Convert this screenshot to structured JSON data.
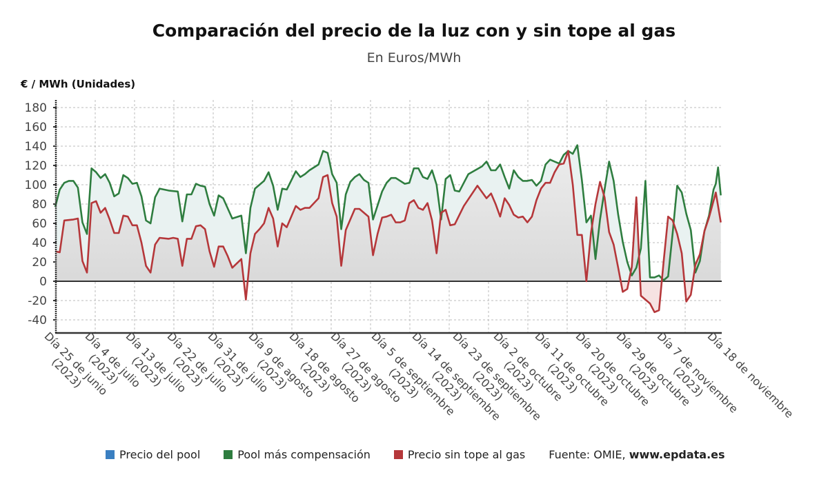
{
  "title": "Comparación del precio de la luz con y sin tope al gas",
  "subtitle": "En Euros/MWh",
  "source_label": "Fuente: OMIE,",
  "source_site": "www.epdata.es",
  "chart_data": {
    "type": "area",
    "title": "Comparación del precio de la luz con y sin tope al gas",
    "subtitle": "En Euros/MWh",
    "ylabel": "€ / MWh (Unidades)",
    "xlabel": "",
    "ylim": [
      -53,
      185
    ],
    "xlim": [
      0,
      146
    ],
    "grid": true,
    "legend_position": "bottom",
    "yticks": [
      180,
      160,
      140,
      120,
      100,
      80,
      60,
      40,
      20,
      0,
      -20,
      -40
    ],
    "xticks": [
      {
        "day": 0,
        "l1": "Día 25 de junio",
        "l2": "(2023)"
      },
      {
        "day": 9,
        "l1": "Día 4 de julio",
        "l2": "(2023)"
      },
      {
        "day": 18,
        "l1": "Día 13 de julio",
        "l2": "(2023)"
      },
      {
        "day": 27,
        "l1": "Día 22 de julio",
        "l2": "(2023)"
      },
      {
        "day": 36,
        "l1": "Día 31 de julio",
        "l2": "(2023)"
      },
      {
        "day": 45,
        "l1": "Día 9 de agosto",
        "l2": "(2023)"
      },
      {
        "day": 54,
        "l1": "Día 18 de agosto",
        "l2": "(2023)"
      },
      {
        "day": 63,
        "l1": "Día 27 de agosto",
        "l2": "(2023)"
      },
      {
        "day": 72,
        "l1": "Día 5 de septiembre",
        "l2": "(2023)"
      },
      {
        "day": 81,
        "l1": "Día 14 de septiembre",
        "l2": "(2023)"
      },
      {
        "day": 90,
        "l1": "Día 23 de septiembre",
        "l2": "(2023)"
      },
      {
        "day": 99,
        "l1": "Día 2 de octubre",
        "l2": "(2023)"
      },
      {
        "day": 108,
        "l1": "Día 11 de octubre",
        "l2": "(2023)"
      },
      {
        "day": 117,
        "l1": "Día 20 de octubre",
        "l2": "(2023)"
      },
      {
        "day": 126,
        "l1": "Día 29 de octubre",
        "l2": "(2023)"
      },
      {
        "day": 135,
        "l1": "Día 7 de noviembre",
        "l2": "(2023)"
      },
      {
        "day": 146,
        "l1": "Día 18 de noviembre",
        "l2": ""
      }
    ],
    "series": [
      {
        "name": "Precio del pool",
        "color": "#3a7fc1",
        "points": []
      },
      {
        "name": "Pool más compensación",
        "color": "#2e7d3f",
        "points": [
          [
            0,
            77
          ],
          [
            1,
            95
          ],
          [
            2,
            102
          ],
          [
            3,
            104
          ],
          [
            4,
            104
          ],
          [
            5,
            97
          ],
          [
            6,
            61
          ],
          [
            7,
            49
          ],
          [
            8,
            117
          ],
          [
            9,
            113
          ],
          [
            10,
            107
          ],
          [
            11,
            111
          ],
          [
            12,
            102
          ],
          [
            13,
            88
          ],
          [
            14,
            91
          ],
          [
            15,
            110
          ],
          [
            16,
            107
          ],
          [
            17,
            101
          ],
          [
            18,
            102
          ],
          [
            19,
            88
          ],
          [
            20,
            63
          ],
          [
            21,
            60
          ],
          [
            22,
            87
          ],
          [
            23,
            96
          ],
          [
            25,
            94
          ],
          [
            27,
            93
          ],
          [
            28,
            62
          ],
          [
            29,
            90
          ],
          [
            30,
            90
          ],
          [
            31,
            101
          ],
          [
            32,
            99
          ],
          [
            33,
            98
          ],
          [
            34,
            80
          ],
          [
            35,
            68
          ],
          [
            36,
            89
          ],
          [
            37,
            86
          ],
          [
            39,
            65
          ],
          [
            41,
            68
          ],
          [
            42,
            29
          ],
          [
            43,
            76
          ],
          [
            44,
            96
          ],
          [
            45,
            100
          ],
          [
            46,
            104
          ],
          [
            47,
            113
          ],
          [
            48,
            99
          ],
          [
            49,
            74
          ],
          [
            50,
            96
          ],
          [
            51,
            95
          ],
          [
            53,
            114
          ],
          [
            54,
            108
          ],
          [
            55,
            111
          ],
          [
            56,
            115
          ],
          [
            58,
            121
          ],
          [
            59,
            135
          ],
          [
            60,
            133
          ],
          [
            61,
            111
          ],
          [
            62,
            102
          ],
          [
            63,
            54
          ],
          [
            64,
            90
          ],
          [
            65,
            103
          ],
          [
            66,
            108
          ],
          [
            67,
            111
          ],
          [
            68,
            105
          ],
          [
            69,
            102
          ],
          [
            70,
            64
          ],
          [
            72,
            93
          ],
          [
            73,
            102
          ],
          [
            74,
            107
          ],
          [
            75,
            107
          ],
          [
            77,
            101
          ],
          [
            78,
            102
          ],
          [
            79,
            117
          ],
          [
            80,
            117
          ],
          [
            81,
            108
          ],
          [
            82,
            106
          ],
          [
            83,
            115
          ],
          [
            84,
            100
          ],
          [
            85,
            64
          ],
          [
            86,
            106
          ],
          [
            87,
            110
          ],
          [
            88,
            94
          ],
          [
            89,
            93
          ],
          [
            90,
            102
          ],
          [
            91,
            111
          ],
          [
            94,
            119
          ],
          [
            95,
            124
          ],
          [
            96,
            115
          ],
          [
            97,
            115
          ],
          [
            98,
            121
          ],
          [
            99,
            108
          ],
          [
            100,
            96
          ],
          [
            101,
            115
          ],
          [
            102,
            108
          ],
          [
            103,
            104
          ],
          [
            104,
            104
          ],
          [
            105,
            105
          ],
          [
            106,
            99
          ],
          [
            107,
            104
          ],
          [
            108,
            121
          ],
          [
            109,
            126
          ],
          [
            110,
            124
          ],
          [
            111,
            122
          ],
          [
            112,
            131
          ],
          [
            113,
            135
          ],
          [
            114,
            132
          ],
          [
            115,
            141
          ],
          [
            116,
            105
          ],
          [
            117,
            61
          ],
          [
            118,
            68
          ],
          [
            119,
            23
          ],
          [
            120,
            64
          ],
          [
            121,
            95
          ],
          [
            122,
            124
          ],
          [
            123,
            104
          ],
          [
            124,
            69
          ],
          [
            125,
            41
          ],
          [
            126,
            20
          ],
          [
            127,
            6
          ],
          [
            128,
            14
          ],
          [
            129,
            34
          ],
          [
            130,
            104
          ],
          [
            131,
            4
          ],
          [
            132,
            4
          ],
          [
            133,
            6
          ],
          [
            134,
            1
          ],
          [
            135,
            5
          ],
          [
            136,
            50
          ],
          [
            137,
            99
          ],
          [
            138,
            92
          ],
          [
            139,
            70
          ],
          [
            140,
            53
          ],
          [
            141,
            9
          ],
          [
            142,
            21
          ],
          [
            143,
            52
          ],
          [
            144,
            68
          ],
          [
            145,
            95
          ],
          [
            145.5,
            101
          ],
          [
            146,
            118
          ],
          [
            146.6,
            89
          ]
        ]
      },
      {
        "name": "Precio sin tope al gas",
        "color": "#b5373a",
        "points": [
          [
            0,
            31
          ],
          [
            1,
            30
          ],
          [
            2,
            63
          ],
          [
            4,
            64
          ],
          [
            5,
            65
          ],
          [
            6,
            21
          ],
          [
            7,
            9
          ],
          [
            8,
            81
          ],
          [
            9,
            83
          ],
          [
            10,
            71
          ],
          [
            11,
            76
          ],
          [
            12,
            64
          ],
          [
            13,
            50
          ],
          [
            14,
            50
          ],
          [
            15,
            68
          ],
          [
            16,
            67
          ],
          [
            17,
            58
          ],
          [
            18,
            58
          ],
          [
            19,
            40
          ],
          [
            20,
            16
          ],
          [
            21,
            9
          ],
          [
            22,
            38
          ],
          [
            23,
            45
          ],
          [
            25,
            44
          ],
          [
            26,
            45
          ],
          [
            27,
            44
          ],
          [
            28,
            16
          ],
          [
            29,
            44
          ],
          [
            30,
            44
          ],
          [
            31,
            57
          ],
          [
            32,
            58
          ],
          [
            33,
            54
          ],
          [
            34,
            31
          ],
          [
            35,
            15
          ],
          [
            36,
            36
          ],
          [
            37,
            36
          ],
          [
            38,
            26
          ],
          [
            39,
            14
          ],
          [
            41,
            23
          ],
          [
            42,
            -19
          ],
          [
            43,
            29
          ],
          [
            44,
            49
          ],
          [
            45,
            54
          ],
          [
            46,
            60
          ],
          [
            47,
            76
          ],
          [
            48,
            65
          ],
          [
            49,
            36
          ],
          [
            50,
            60
          ],
          [
            51,
            56
          ],
          [
            53,
            78
          ],
          [
            54,
            74
          ],
          [
            55,
            76
          ],
          [
            56,
            76
          ],
          [
            57,
            81
          ],
          [
            58,
            86
          ],
          [
            59,
            108
          ],
          [
            60,
            110
          ],
          [
            61,
            81
          ],
          [
            62,
            67
          ],
          [
            63,
            16
          ],
          [
            64,
            53
          ],
          [
            65,
            64
          ],
          [
            66,
            75
          ],
          [
            67,
            75
          ],
          [
            69,
            67
          ],
          [
            70,
            27
          ],
          [
            71,
            49
          ],
          [
            72,
            66
          ],
          [
            73,
            67
          ],
          [
            74,
            69
          ],
          [
            75,
            61
          ],
          [
            76,
            61
          ],
          [
            77,
            63
          ],
          [
            78,
            81
          ],
          [
            79,
            84
          ],
          [
            80,
            76
          ],
          [
            81,
            74
          ],
          [
            82,
            81
          ],
          [
            83,
            63
          ],
          [
            84,
            29
          ],
          [
            85,
            71
          ],
          [
            86,
            74
          ],
          [
            87,
            58
          ],
          [
            88,
            59
          ],
          [
            90,
            78
          ],
          [
            93,
            99
          ],
          [
            95,
            86
          ],
          [
            96,
            91
          ],
          [
            97,
            80
          ],
          [
            98,
            67
          ],
          [
            99,
            86
          ],
          [
            100,
            79
          ],
          [
            101,
            69
          ],
          [
            102,
            66
          ],
          [
            103,
            67
          ],
          [
            104,
            61
          ],
          [
            105,
            67
          ],
          [
            106,
            84
          ],
          [
            107,
            96
          ],
          [
            108,
            102
          ],
          [
            109,
            102
          ],
          [
            110,
            113
          ],
          [
            111,
            121
          ],
          [
            112,
            122
          ],
          [
            113,
            135
          ],
          [
            114,
            100
          ],
          [
            115,
            48
          ],
          [
            116,
            48
          ],
          [
            117,
            0
          ],
          [
            118,
            50
          ],
          [
            119,
            80
          ],
          [
            120,
            103
          ],
          [
            121,
            87
          ],
          [
            122,
            51
          ],
          [
            123,
            38
          ],
          [
            124,
            14
          ],
          [
            125,
            -11
          ],
          [
            126,
            -8
          ],
          [
            127,
            15
          ],
          [
            128,
            87
          ],
          [
            129,
            -15
          ],
          [
            130,
            -19
          ],
          [
            131,
            -23
          ],
          [
            132,
            -32
          ],
          [
            133,
            -30
          ],
          [
            134,
            20
          ],
          [
            135,
            67
          ],
          [
            136,
            63
          ],
          [
            137,
            49
          ],
          [
            138,
            29
          ],
          [
            139,
            -21
          ],
          [
            140,
            -14
          ],
          [
            141,
            17
          ],
          [
            142,
            28
          ],
          [
            143,
            52
          ],
          [
            144,
            66
          ],
          [
            145.5,
            92
          ],
          [
            146.6,
            61
          ]
        ]
      }
    ]
  }
}
